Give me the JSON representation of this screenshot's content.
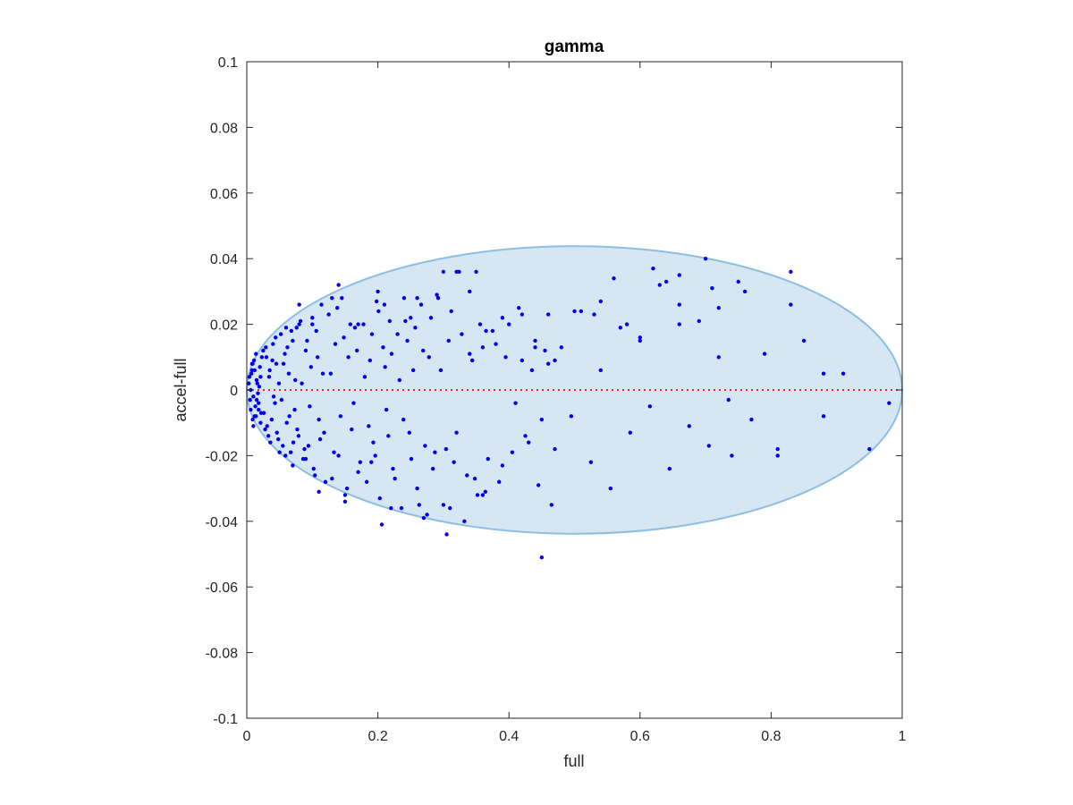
{
  "chart_data": {
    "type": "scatter",
    "title": "gamma",
    "xlabel": "full",
    "ylabel": "accel-full",
    "xlim": [
      0,
      1
    ],
    "ylim": [
      -0.1,
      0.1
    ],
    "x_ticks": [
      "0",
      "0.2",
      "0.4",
      "0.6",
      "0.8",
      "1"
    ],
    "y_ticks": [
      "0.1",
      "0.08",
      "0.06",
      "0.04",
      "0.02",
      "0",
      "-0.02",
      "-0.04",
      "-0.06",
      "-0.08",
      "-0.1"
    ],
    "grid": false,
    "legend": "none",
    "colors": {
      "points": "#0000ee",
      "ellipse_fill": "#d6e6f3",
      "ellipse_stroke": "#8cbfe0",
      "reference_line": "#ff2020",
      "axes": "#262626"
    },
    "reference_line": {
      "y": 0,
      "style": "dotted"
    },
    "ellipse": {
      "cx": 0.5,
      "cy": 0.0,
      "rx": 0.5,
      "ry": 0.0438
    },
    "series": [
      {
        "x": [
          0.004,
          0.006,
          0.008,
          0.01,
          0.012,
          0.014,
          0.016,
          0.018,
          0.02,
          0.022,
          0.005,
          0.007,
          0.009,
          0.011,
          0.013,
          0.015,
          0.017,
          0.019,
          0.021,
          0.023,
          0.006,
          0.01,
          0.014,
          0.018,
          0.003,
          0.009,
          0.015,
          0.021,
          0.012,
          0.008,
          0.025,
          0.028,
          0.03,
          0.033,
          0.035,
          0.038,
          0.04,
          0.043,
          0.045,
          0.048,
          0.026,
          0.029,
          0.031,
          0.034,
          0.036,
          0.039,
          0.041,
          0.044,
          0.046,
          0.049,
          0.052,
          0.055,
          0.058,
          0.061,
          0.064,
          0.067,
          0.07,
          0.073,
          0.076,
          0.079,
          0.053,
          0.056,
          0.059,
          0.062,
          0.065,
          0.068,
          0.071,
          0.074,
          0.077,
          0.08,
          0.082,
          0.086,
          0.09,
          0.094,
          0.098,
          0.102,
          0.106,
          0.11,
          0.114,
          0.118,
          0.084,
          0.088,
          0.092,
          0.096,
          0.1,
          0.104,
          0.108,
          0.112,
          0.116,
          0.12,
          0.125,
          0.13,
          0.135,
          0.14,
          0.145,
          0.15,
          0.155,
          0.16,
          0.165,
          0.17,
          0.128,
          0.133,
          0.138,
          0.143,
          0.148,
          0.153,
          0.158,
          0.163,
          0.168,
          0.173,
          0.178,
          0.183,
          0.188,
          0.193,
          0.198,
          0.203,
          0.208,
          0.213,
          0.218,
          0.223,
          0.18,
          0.186,
          0.191,
          0.196,
          0.201,
          0.206,
          0.211,
          0.216,
          0.221,
          0.226,
          0.23,
          0.236,
          0.242,
          0.248,
          0.254,
          0.26,
          0.266,
          0.272,
          0.278,
          0.284,
          0.233,
          0.239,
          0.245,
          0.251,
          0.257,
          0.263,
          0.269,
          0.275,
          0.281,
          0.287,
          0.292,
          0.3,
          0.308,
          0.316,
          0.324,
          0.332,
          0.34,
          0.348,
          0.356,
          0.364,
          0.296,
          0.304,
          0.312,
          0.32,
          0.328,
          0.336,
          0.344,
          0.352,
          0.36,
          0.368,
          0.375,
          0.385,
          0.395,
          0.405,
          0.415,
          0.425,
          0.435,
          0.445,
          0.455,
          0.465,
          0.38,
          0.39,
          0.4,
          0.41,
          0.42,
          0.43,
          0.44,
          0.45,
          0.46,
          0.47,
          0.48,
          0.495,
          0.51,
          0.525,
          0.54,
          0.555,
          0.57,
          0.585,
          0.6,
          0.615,
          0.63,
          0.645,
          0.66,
          0.675,
          0.69,
          0.705,
          0.72,
          0.735,
          0.75,
          0.77,
          0.79,
          0.81,
          0.83,
          0.85,
          0.88,
          0.91,
          0.95,
          0.98,
          0.56,
          0.62,
          0.64,
          0.66,
          0.7,
          0.71,
          0.76,
          0.83,
          0.58,
          0.5,
          0.53,
          0.45,
          0.32,
          0.305,
          0.35,
          0.14,
          0.2,
          0.24,
          0.1,
          0.08,
          0.06,
          0.42,
          0.44,
          0.46,
          0.365,
          0.47,
          0.54,
          0.6,
          0.66,
          0.72,
          0.74,
          0.81,
          0.88,
          0.26,
          0.29,
          0.13,
          0.17,
          0.21,
          0.25,
          0.3,
          0.34,
          0.39,
          0.05,
          0.07,
          0.09,
          0.11,
          0.15,
          0.19,
          0.22,
          0.27,
          0.31,
          0.36
        ],
        "y": [
          0.004,
          -0.006,
          0.008,
          -0.002,
          0.006,
          -0.008,
          0.002,
          -0.004,
          0.007,
          -0.007,
          -0.003,
          0.005,
          -0.009,
          0.009,
          -0.005,
          0.003,
          -0.001,
          0.001,
          -0.01,
          0.01,
          0.0,
          -0.011,
          0.011,
          -0.006,
          0.002,
          0.008,
          -0.003,
          0.004,
          -0.008,
          0.006,
          0.012,
          -0.012,
          0.01,
          -0.014,
          0.006,
          -0.009,
          0.014,
          -0.004,
          0.008,
          -0.015,
          -0.007,
          0.013,
          -0.011,
          0.004,
          -0.016,
          0.009,
          -0.002,
          0.016,
          -0.013,
          0.002,
          0.017,
          -0.017,
          0.011,
          -0.01,
          0.005,
          -0.019,
          0.015,
          -0.006,
          0.019,
          -0.014,
          -0.003,
          0.008,
          -0.02,
          0.013,
          -0.008,
          0.018,
          -0.016,
          0.003,
          -0.012,
          0.02,
          0.021,
          -0.021,
          0.012,
          -0.017,
          0.007,
          -0.024,
          0.018,
          -0.009,
          0.026,
          -0.013,
          0.002,
          -0.018,
          0.015,
          -0.005,
          0.022,
          -0.026,
          0.01,
          -0.015,
          0.005,
          -0.028,
          0.023,
          -0.027,
          0.014,
          -0.02,
          0.028,
          -0.032,
          0.01,
          -0.012,
          0.019,
          -0.025,
          0.005,
          -0.019,
          0.025,
          -0.008,
          0.016,
          -0.03,
          0.02,
          -0.004,
          0.012,
          -0.022,
          0.02,
          -0.028,
          0.009,
          -0.016,
          0.027,
          -0.033,
          0.013,
          -0.006,
          0.021,
          -0.024,
          0.004,
          -0.011,
          0.017,
          -0.02,
          0.024,
          -0.041,
          0.007,
          -0.014,
          0.011,
          -0.027,
          0.017,
          -0.036,
          0.021,
          -0.013,
          0.006,
          -0.03,
          0.026,
          -0.017,
          0.01,
          -0.024,
          0.003,
          -0.009,
          0.015,
          -0.021,
          0.019,
          -0.035,
          0.012,
          -0.038,
          0.022,
          -0.019,
          0.028,
          -0.035,
          0.015,
          -0.022,
          0.036,
          -0.04,
          0.011,
          -0.027,
          0.02,
          -0.031,
          0.006,
          -0.018,
          0.024,
          -0.013,
          0.017,
          -0.026,
          0.009,
          -0.032,
          0.013,
          -0.021,
          0.018,
          -0.028,
          0.01,
          -0.019,
          0.025,
          -0.014,
          0.006,
          -0.029,
          0.012,
          -0.035,
          0.014,
          -0.023,
          0.02,
          -0.004,
          0.009,
          -0.016,
          0.015,
          -0.009,
          0.023,
          -0.018,
          0.013,
          -0.008,
          0.024,
          -0.022,
          0.027,
          -0.03,
          0.019,
          -0.013,
          0.016,
          -0.005,
          0.032,
          -0.024,
          0.026,
          -0.011,
          0.021,
          -0.017,
          0.025,
          -0.003,
          0.033,
          -0.009,
          0.011,
          -0.02,
          0.036,
          0.015,
          -0.008,
          0.005,
          -0.018,
          -0.004,
          0.034,
          0.037,
          0.033,
          0.035,
          0.04,
          0.031,
          0.03,
          0.026,
          0.02,
          0.024,
          0.023,
          -0.051,
          0.036,
          -0.044,
          0.036,
          0.032,
          0.03,
          0.028,
          0.02,
          0.026,
          0.019,
          0.023,
          0.013,
          0.008,
          0.018,
          0.009,
          0.006,
          0.015,
          0.02,
          0.01,
          -0.02,
          -0.018,
          0.005,
          0.028,
          0.029,
          0.028,
          0.02,
          0.026,
          0.022,
          0.036,
          0.03,
          0.022,
          -0.019,
          -0.023,
          -0.021,
          -0.031,
          -0.034,
          -0.022,
          -0.036,
          -0.039,
          -0.036,
          -0.032
        ]
      }
    ]
  }
}
